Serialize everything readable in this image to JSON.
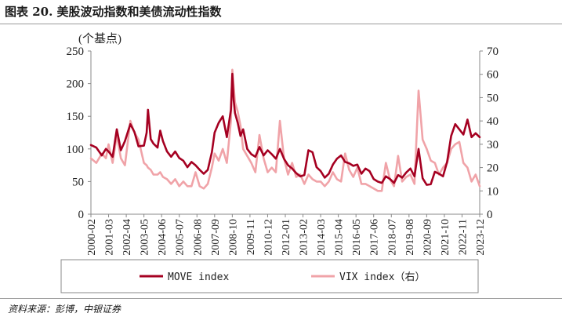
{
  "figure_title": "图表 20. 美股波动指数和美债流动性指数",
  "source": "资料来源：彭博，中银证券",
  "chart_data": {
    "type": "line",
    "y_unit_label": "(个基点)",
    "ylim_left": [
      0,
      250
    ],
    "yticks_left": [
      0,
      50,
      100,
      150,
      200,
      250
    ],
    "ylim_right": [
      0,
      70
    ],
    "yticks_right": [
      0,
      10,
      20,
      30,
      40,
      50,
      60,
      70
    ],
    "xlim": [
      "2000-02",
      "2023-12"
    ],
    "xticks": [
      "2000-02",
      "2001-03",
      "2002-04",
      "2003-05",
      "2004-06",
      "2005-07",
      "2006-08",
      "2007-09",
      "2008-10",
      "2009-11",
      "2010-12",
      "2012-01",
      "2013-02",
      "2014-03",
      "2015-04",
      "2016-05",
      "2017-06",
      "2018-07",
      "2019-08",
      "2020-09",
      "2021-10",
      "2022-11",
      "2023-12"
    ],
    "grid": false,
    "legend_position": "bottom",
    "series": [
      {
        "name": "MOVE index",
        "axis": "left",
        "color": "#a50021",
        "points": [
          [
            "2000-02",
            106
          ],
          [
            "2000-06",
            102
          ],
          [
            "2000-10",
            90
          ],
          [
            "2001-01",
            100
          ],
          [
            "2001-03",
            96
          ],
          [
            "2001-06",
            88
          ],
          [
            "2001-09",
            130
          ],
          [
            "2001-12",
            98
          ],
          [
            "2002-03",
            112
          ],
          [
            "2002-07",
            138
          ],
          [
            "2002-10",
            126
          ],
          [
            "2003-01",
            104
          ],
          [
            "2003-05",
            105
          ],
          [
            "2003-07",
            125
          ],
          [
            "2003-08",
            160
          ],
          [
            "2003-10",
            115
          ],
          [
            "2003-12",
            108
          ],
          [
            "2004-03",
            102
          ],
          [
            "2004-05",
            128
          ],
          [
            "2004-07",
            112
          ],
          [
            "2004-10",
            96
          ],
          [
            "2005-01",
            88
          ],
          [
            "2005-04",
            96
          ],
          [
            "2005-07",
            86
          ],
          [
            "2005-10",
            82
          ],
          [
            "2006-01",
            72
          ],
          [
            "2006-04",
            80
          ],
          [
            "2006-07",
            75
          ],
          [
            "2006-10",
            68
          ],
          [
            "2007-01",
            62
          ],
          [
            "2007-04",
            68
          ],
          [
            "2007-07",
            95
          ],
          [
            "2007-09",
            125
          ],
          [
            "2007-12",
            140
          ],
          [
            "2008-03",
            150
          ],
          [
            "2008-06",
            118
          ],
          [
            "2008-09",
            160
          ],
          [
            "2008-10",
            215
          ],
          [
            "2008-11",
            175
          ],
          [
            "2008-12",
            155
          ],
          [
            "2009-02",
            140
          ],
          [
            "2009-04",
            120
          ],
          [
            "2009-06",
            130
          ],
          [
            "2009-09",
            100
          ],
          [
            "2009-12",
            92
          ],
          [
            "2010-03",
            88
          ],
          [
            "2010-06",
            103
          ],
          [
            "2010-09",
            90
          ],
          [
            "2010-12",
            98
          ],
          [
            "2011-03",
            92
          ],
          [
            "2011-06",
            85
          ],
          [
            "2011-09",
            100
          ],
          [
            "2011-12",
            85
          ],
          [
            "2012-03",
            75
          ],
          [
            "2012-06",
            70
          ],
          [
            "2012-09",
            63
          ],
          [
            "2012-12",
            58
          ],
          [
            "2013-03",
            60
          ],
          [
            "2013-06",
            98
          ],
          [
            "2013-09",
            95
          ],
          [
            "2013-12",
            72
          ],
          [
            "2014-03",
            66
          ],
          [
            "2014-06",
            56
          ],
          [
            "2014-09",
            62
          ],
          [
            "2014-12",
            76
          ],
          [
            "2015-03",
            85
          ],
          [
            "2015-06",
            90
          ],
          [
            "2015-09",
            80
          ],
          [
            "2015-12",
            78
          ],
          [
            "2016-03",
            74
          ],
          [
            "2016-06",
            76
          ],
          [
            "2016-09",
            62
          ],
          [
            "2016-12",
            70
          ],
          [
            "2017-03",
            66
          ],
          [
            "2017-06",
            54
          ],
          [
            "2017-09",
            50
          ],
          [
            "2017-12",
            48
          ],
          [
            "2018-03",
            58
          ],
          [
            "2018-06",
            54
          ],
          [
            "2018-09",
            48
          ],
          [
            "2018-12",
            60
          ],
          [
            "2019-03",
            56
          ],
          [
            "2019-06",
            64
          ],
          [
            "2019-09",
            70
          ],
          [
            "2019-12",
            58
          ],
          [
            "2020-03",
            100
          ],
          [
            "2020-06",
            55
          ],
          [
            "2020-09",
            45
          ],
          [
            "2020-12",
            46
          ],
          [
            "2021-03",
            65
          ],
          [
            "2021-06",
            62
          ],
          [
            "2021-09",
            58
          ],
          [
            "2021-12",
            80
          ],
          [
            "2022-03",
            120
          ],
          [
            "2022-06",
            138
          ],
          [
            "2022-09",
            130
          ],
          [
            "2022-12",
            122
          ],
          [
            "2023-03",
            145
          ],
          [
            "2023-06",
            118
          ],
          [
            "2023-09",
            124
          ],
          [
            "2023-12",
            118
          ]
        ]
      },
      {
        "name": "VIX index（右）",
        "axis": "right",
        "color": "#f0a3a8",
        "points": [
          [
            "2000-02",
            24
          ],
          [
            "2000-06",
            22
          ],
          [
            "2000-10",
            26
          ],
          [
            "2001-01",
            24
          ],
          [
            "2001-03",
            30
          ],
          [
            "2001-06",
            22
          ],
          [
            "2001-09",
            34
          ],
          [
            "2001-12",
            24
          ],
          [
            "2002-03",
            21
          ],
          [
            "2002-07",
            40
          ],
          [
            "2002-10",
            35
          ],
          [
            "2003-01",
            32
          ],
          [
            "2003-05",
            22
          ],
          [
            "2003-07",
            21
          ],
          [
            "2003-08",
            20
          ],
          [
            "2003-10",
            19
          ],
          [
            "2003-12",
            17
          ],
          [
            "2004-03",
            17
          ],
          [
            "2004-05",
            18
          ],
          [
            "2004-07",
            16
          ],
          [
            "2004-10",
            15
          ],
          [
            "2005-01",
            13
          ],
          [
            "2005-04",
            15
          ],
          [
            "2005-07",
            12
          ],
          [
            "2005-10",
            14
          ],
          [
            "2006-01",
            12
          ],
          [
            "2006-04",
            12
          ],
          [
            "2006-07",
            18
          ],
          [
            "2006-10",
            12
          ],
          [
            "2007-01",
            11
          ],
          [
            "2007-04",
            13
          ],
          [
            "2007-07",
            20
          ],
          [
            "2007-09",
            26
          ],
          [
            "2007-12",
            23
          ],
          [
            "2008-03",
            28
          ],
          [
            "2008-06",
            22
          ],
          [
            "2008-09",
            40
          ],
          [
            "2008-10",
            62
          ],
          [
            "2008-11",
            55
          ],
          [
            "2008-12",
            48
          ],
          [
            "2009-02",
            44
          ],
          [
            "2009-04",
            38
          ],
          [
            "2009-06",
            28
          ],
          [
            "2009-09",
            25
          ],
          [
            "2009-12",
            22
          ],
          [
            "2010-03",
            18
          ],
          [
            "2010-06",
            34
          ],
          [
            "2010-09",
            24
          ],
          [
            "2010-12",
            18
          ],
          [
            "2011-03",
            20
          ],
          [
            "2011-06",
            18
          ],
          [
            "2011-09",
            40
          ],
          [
            "2011-12",
            24
          ],
          [
            "2012-03",
            17
          ],
          [
            "2012-06",
            22
          ],
          [
            "2012-09",
            16
          ],
          [
            "2012-12",
            17
          ],
          [
            "2013-03",
            13
          ],
          [
            "2013-06",
            17
          ],
          [
            "2013-09",
            15
          ],
          [
            "2013-12",
            14
          ],
          [
            "2014-03",
            14
          ],
          [
            "2014-06",
            12
          ],
          [
            "2014-09",
            14
          ],
          [
            "2014-12",
            18
          ],
          [
            "2015-03",
            15
          ],
          [
            "2015-06",
            14
          ],
          [
            "2015-09",
            26
          ],
          [
            "2015-12",
            19
          ],
          [
            "2016-03",
            16
          ],
          [
            "2016-06",
            20
          ],
          [
            "2016-09",
            13
          ],
          [
            "2016-12",
            13
          ],
          [
            "2017-03",
            12
          ],
          [
            "2017-06",
            11
          ],
          [
            "2017-09",
            10
          ],
          [
            "2017-12",
            10
          ],
          [
            "2018-03",
            22
          ],
          [
            "2018-06",
            15
          ],
          [
            "2018-09",
            12
          ],
          [
            "2018-12",
            25
          ],
          [
            "2019-03",
            14
          ],
          [
            "2019-06",
            16
          ],
          [
            "2019-09",
            17
          ],
          [
            "2019-12",
            13
          ],
          [
            "2020-03",
            53
          ],
          [
            "2020-06",
            32
          ],
          [
            "2020-09",
            28
          ],
          [
            "2020-12",
            23
          ],
          [
            "2021-03",
            22
          ],
          [
            "2021-06",
            17
          ],
          [
            "2021-09",
            20
          ],
          [
            "2021-12",
            22
          ],
          [
            "2022-03",
            28
          ],
          [
            "2022-06",
            30
          ],
          [
            "2022-09",
            31
          ],
          [
            "2022-12",
            22
          ],
          [
            "2023-03",
            20
          ],
          [
            "2023-06",
            14
          ],
          [
            "2023-09",
            17
          ],
          [
            "2023-12",
            12
          ]
        ]
      }
    ]
  }
}
